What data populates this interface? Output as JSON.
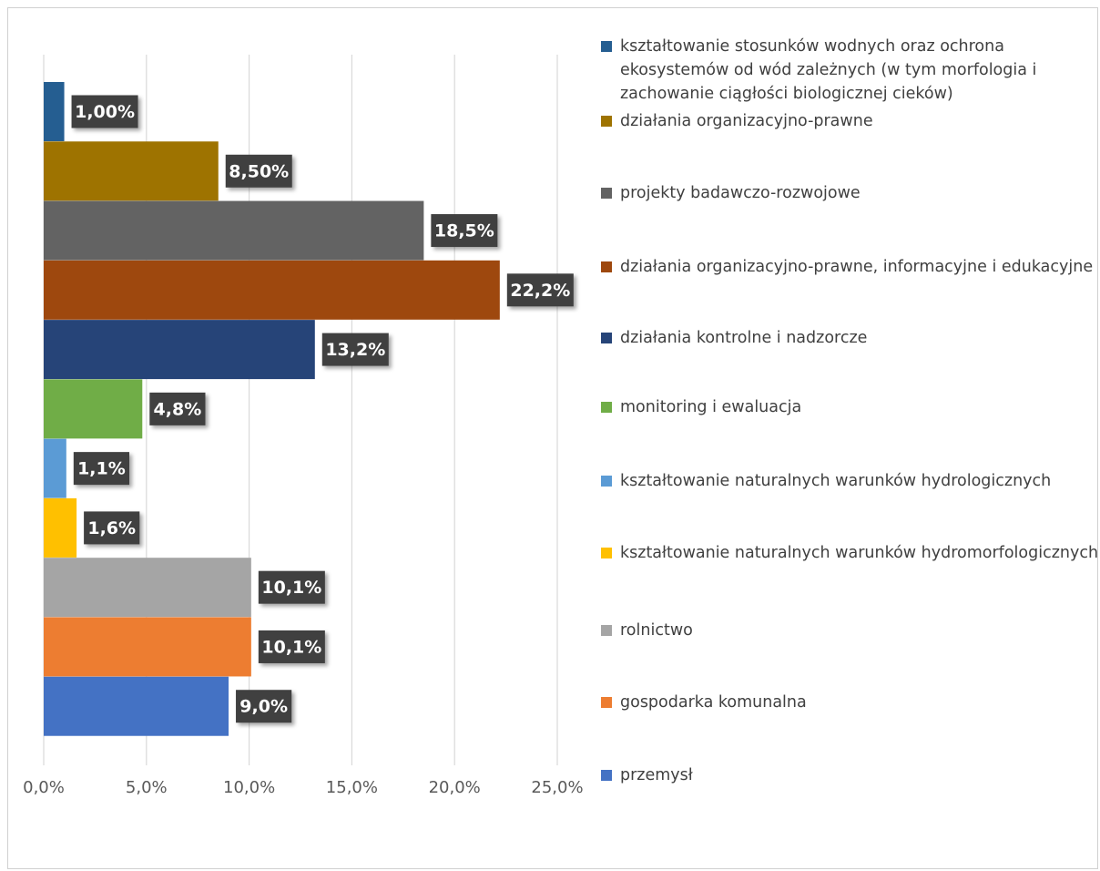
{
  "chart_data": {
    "type": "bar",
    "orientation": "horizontal",
    "grid": true,
    "legend_position": "right",
    "xlim": [
      0,
      25
    ],
    "x_ticks": [
      "0,0%",
      "5,0%",
      "10,0%",
      "15,0%",
      "20,0%",
      "25,0%"
    ],
    "series": [
      {
        "name": "kształtowanie stosunków wodnych oraz ochrona ekosystemów od wód zależnych (w tym morfologia i zachowanie ciągłości biologicznej cieków)",
        "value": 1.0,
        "label": "1,00%",
        "color": "#255e91"
      },
      {
        "name": "działania organizacyjno-prawne",
        "value": 8.5,
        "label": "8,50%",
        "color": "#9e7300"
      },
      {
        "name": "projekty badawczo-rozwojowe",
        "value": 18.5,
        "label": "18,5%",
        "color": "#636363"
      },
      {
        "name": "działania organizacyjno-prawne, informacyjne i edukacyjne",
        "value": 22.2,
        "label": "22,2%",
        "color": "#9e480e"
      },
      {
        "name": "działania kontrolne i nadzorcze",
        "value": 13.2,
        "label": "13,2%",
        "color": "#264478"
      },
      {
        "name": "monitoring i ewaluacja",
        "value": 4.8,
        "label": "4,8%",
        "color": "#70ad47"
      },
      {
        "name": "kształtowanie naturalnych warunków hydrologicznych",
        "value": 1.1,
        "label": "1,1%",
        "color": "#5b9bd5"
      },
      {
        "name": "kształtowanie naturalnych warunków hydromorfologicznych",
        "value": 1.6,
        "label": "1,6%",
        "color": "#ffc000"
      },
      {
        "name": "rolnictwo",
        "value": 10.1,
        "label": "10,1%",
        "color": "#a5a5a5"
      },
      {
        "name": "gospodarka komunalna",
        "value": 10.1,
        "label": "10,1%",
        "color": "#ed7d31"
      },
      {
        "name": "przemysł",
        "value": 9.0,
        "label": "9,0%",
        "color": "#4472c4"
      }
    ]
  }
}
